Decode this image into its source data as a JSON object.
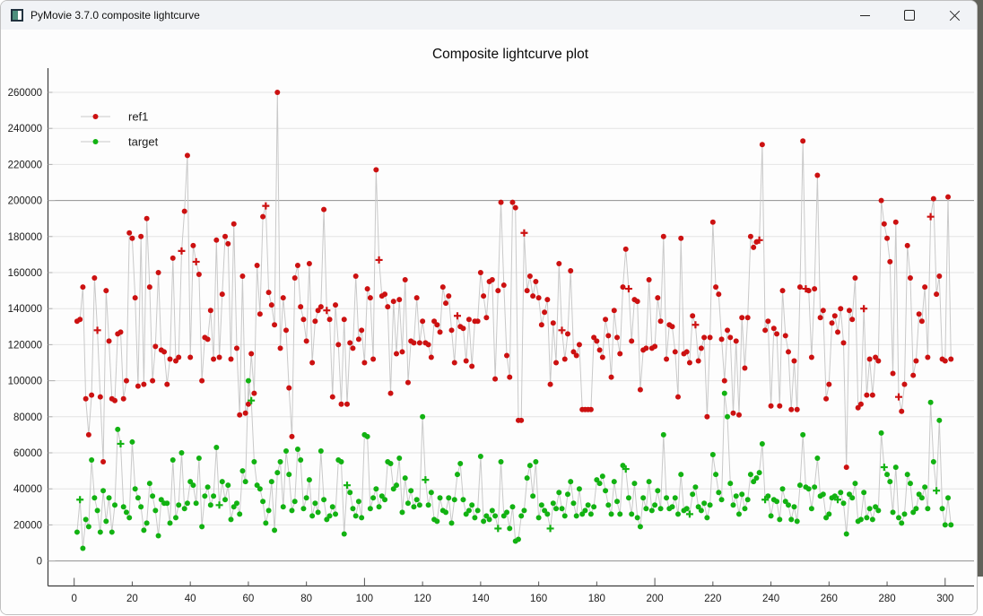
{
  "window": {
    "title": "PyMovie 3.7.0 composite lightcurve",
    "controls": {
      "minimize": "minimize",
      "maximize": "maximize",
      "close": "close"
    }
  },
  "chart_data": {
    "type": "scatter",
    "title": "Composite lightcurve plot",
    "xlabel": "",
    "ylabel": "",
    "x_start": 1,
    "x_step": 1,
    "xlim": [
      -9,
      310
    ],
    "ylim": [
      -14000,
      273000
    ],
    "xticks": [
      0,
      20,
      40,
      60,
      80,
      100,
      120,
      140,
      160,
      180,
      200,
      220,
      240,
      260,
      280,
      300
    ],
    "yticks": [
      0,
      20000,
      40000,
      60000,
      80000,
      100000,
      120000,
      140000,
      160000,
      180000,
      200000,
      220000,
      240000,
      260000
    ],
    "grid": "horizontal",
    "grid_color": "#e4e4e4",
    "emphasized_gridlines": [
      0,
      200000
    ],
    "emphasized_grid_color": "#8f8f8f",
    "line_color": "#c9c9c9",
    "legend_position": "upper-left",
    "series": [
      {
        "name": "ref1",
        "color": "#cc1111",
        "marker": "circle",
        "plus_marker_indices": [
          8,
          37,
          42,
          66,
          87,
          105,
          132,
          155,
          168,
          191,
          214,
          236,
          252,
          272,
          284,
          295
        ],
        "values": [
          133000,
          134000,
          152000,
          90000,
          70000,
          92000,
          157000,
          128000,
          91000,
          55000,
          150000,
          122000,
          90000,
          89000,
          126000,
          127000,
          90000,
          100000,
          182000,
          179000,
          146000,
          97000,
          180000,
          98000,
          190000,
          152000,
          100000,
          119000,
          160000,
          117000,
          116000,
          98000,
          112000,
          168000,
          111000,
          113000,
          172000,
          194000,
          225000,
          113000,
          175000,
          166000,
          159000,
          100000,
          124000,
          123000,
          139000,
          112000,
          178000,
          113000,
          148000,
          180000,
          176000,
          112000,
          187000,
          118000,
          81000,
          158000,
          82000,
          87000,
          115000,
          93000,
          164000,
          137000,
          191000,
          197000,
          149000,
          142000,
          131000,
          260000,
          118000,
          146000,
          128000,
          96000,
          69000,
          157000,
          164000,
          141000,
          134000,
          122000,
          165000,
          110000,
          133000,
          139000,
          141000,
          195000,
          139000,
          134000,
          91000,
          142000,
          120000,
          87000,
          134000,
          87000,
          121000,
          118000,
          158000,
          123000,
          128000,
          110000,
          151000,
          146000,
          112000,
          217000,
          167000,
          147000,
          148000,
          141000,
          93000,
          144000,
          115000,
          145000,
          116000,
          156000,
          99000,
          122000,
          121000,
          146000,
          121000,
          133000,
          121000,
          120000,
          113000,
          133000,
          131000,
          127000,
          152000,
          143000,
          147000,
          128000,
          110000,
          136000,
          130000,
          129000,
          111000,
          134000,
          108000,
          133000,
          133000,
          160000,
          147000,
          135000,
          155000,
          156000,
          101000,
          150000,
          199000,
          153000,
          114000,
          102000,
          199000,
          196000,
          78000,
          78000,
          182000,
          150000,
          158000,
          147000,
          155000,
          146000,
          131000,
          138000,
          145000,
          98000,
          132000,
          110000,
          165000,
          128000,
          112000,
          126000,
          161000,
          116000,
          114000,
          120000,
          84000,
          84000,
          84000,
          84000,
          124000,
          122000,
          117000,
          113000,
          134000,
          125000,
          102000,
          139000,
          124000,
          115000,
          152000,
          173000,
          151000,
          122000,
          145000,
          144000,
          95000,
          117000,
          118000,
          156000,
          118000,
          119000,
          146000,
          133000,
          180000,
          112000,
          131000,
          130000,
          116000,
          91000,
          179000,
          115000,
          116000,
          110000,
          136000,
          131000,
          111000,
          118000,
          124000,
          80000,
          124000,
          188000,
          152000,
          148000,
          123000,
          100000,
          128000,
          124000,
          82000,
          122000,
          81000,
          135000,
          107000,
          135000,
          180000,
          174000,
          177000,
          178000,
          231000,
          128000,
          133000,
          86000,
          129000,
          126000,
          86000,
          150000,
          125000,
          116000,
          84000,
          111000,
          84000,
          152000,
          233000,
          151000,
          150000,
          113000,
          151000,
          214000,
          135000,
          139000,
          90000,
          98000,
          132000,
          136000,
          127000,
          140000,
          121000,
          52000,
          139000,
          134000,
          157000,
          85000,
          87000,
          140000,
          92000,
          112000,
          92000,
          113000,
          111000,
          200000,
          187000,
          179000,
          166000,
          104000,
          188000,
          91000,
          83000,
          98000,
          175000,
          157000,
          103000,
          111000,
          137000,
          133000,
          152000,
          113000,
          191000,
          201000,
          148000,
          158000,
          112000,
          111000,
          202000,
          112000
        ]
      },
      {
        "name": "target",
        "color": "#12b212",
        "marker": "circle",
        "plus_marker_indices": [
          2,
          16,
          50,
          61,
          94,
          121,
          146,
          164,
          190,
          212,
          238,
          263,
          279,
          297
        ],
        "values": [
          16000,
          34000,
          7000,
          23000,
          19000,
          56000,
          35000,
          28000,
          16000,
          39000,
          22000,
          35000,
          16000,
          31000,
          73000,
          65000,
          30000,
          27000,
          24000,
          66000,
          40000,
          35000,
          30000,
          17000,
          21000,
          43000,
          36000,
          28000,
          14000,
          34000,
          32000,
          32000,
          21000,
          56000,
          24000,
          31000,
          60000,
          29000,
          32000,
          44000,
          42000,
          32000,
          57000,
          19000,
          36000,
          41000,
          31000,
          36000,
          63000,
          31000,
          44000,
          34000,
          42000,
          23000,
          30000,
          32000,
          26000,
          50000,
          44000,
          100000,
          89000,
          55000,
          42000,
          40000,
          33000,
          21000,
          28000,
          44000,
          17000,
          49000,
          55000,
          30000,
          61000,
          48000,
          28000,
          33000,
          62000,
          56000,
          29000,
          35000,
          45000,
          25000,
          32000,
          27000,
          61000,
          34000,
          23000,
          25000,
          30000,
          26000,
          56000,
          55000,
          15000,
          42000,
          38000,
          29000,
          25000,
          33000,
          24000,
          70000,
          69000,
          29000,
          35000,
          40000,
          30000,
          36000,
          34000,
          55000,
          54000,
          40000,
          42000,
          57000,
          27000,
          46000,
          32000,
          39000,
          30000,
          34000,
          31000,
          80000,
          45000,
          31000,
          38000,
          23000,
          22000,
          35000,
          28000,
          27000,
          35000,
          21000,
          34000,
          48000,
          54000,
          34000,
          26000,
          28000,
          31000,
          24000,
          28000,
          58000,
          22000,
          25000,
          23000,
          28000,
          25000,
          18000,
          55000,
          25000,
          27000,
          18000,
          30000,
          11000,
          12000,
          25000,
          28000,
          46000,
          53000,
          36000,
          55000,
          24000,
          31000,
          28000,
          26000,
          18000,
          32000,
          29000,
          38000,
          29000,
          25000,
          37000,
          44000,
          32000,
          25000,
          40000,
          26000,
          28000,
          31000,
          26000,
          30000,
          45000,
          43000,
          47000,
          39000,
          31000,
          26000,
          44000,
          33000,
          26000,
          53000,
          51000,
          35000,
          26000,
          43000,
          24000,
          19000,
          35000,
          29000,
          44000,
          28000,
          31000,
          39000,
          29000,
          70000,
          35000,
          29000,
          30000,
          35000,
          26000,
          48000,
          28000,
          29000,
          26000,
          37000,
          41000,
          30000,
          28000,
          32000,
          24000,
          31000,
          59000,
          48000,
          38000,
          34000,
          93000,
          80000,
          43000,
          31000,
          36000,
          26000,
          37000,
          29000,
          34000,
          48000,
          44000,
          46000,
          49000,
          65000,
          34000,
          36000,
          25000,
          34000,
          33000,
          23000,
          40000,
          33000,
          31000,
          23000,
          30000,
          22000,
          42000,
          70000,
          41000,
          40000,
          29000,
          41000,
          57000,
          36000,
          37000,
          24000,
          26000,
          35000,
          36000,
          34000,
          38000,
          32000,
          15000,
          37000,
          35000,
          43000,
          22000,
          23000,
          38000,
          24000,
          29000,
          23000,
          30000,
          28000,
          71000,
          52000,
          48000,
          44000,
          27000,
          52000,
          24000,
          21000,
          26000,
          48000,
          43000,
          27000,
          29000,
          37000,
          35000,
          41000,
          29000,
          88000,
          55000,
          39000,
          78000,
          29000,
          20000,
          35000,
          20000
        ]
      }
    ]
  }
}
